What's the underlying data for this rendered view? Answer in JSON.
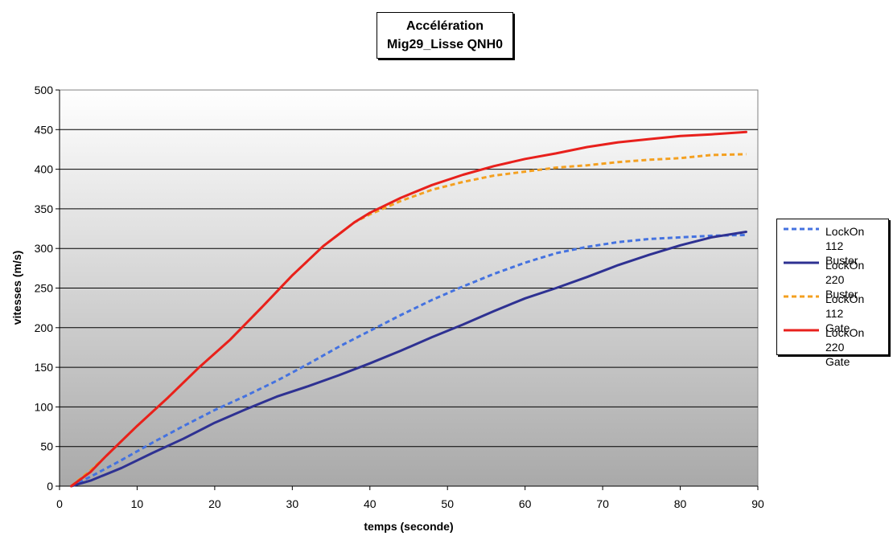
{
  "chart_data": {
    "type": "line",
    "title": "Accélération",
    "subtitle": "Mig29_Lisse QNH0",
    "xlabel": "temps (seconde)",
    "ylabel": "vitesses (m/s)",
    "xlim": [
      0,
      90
    ],
    "ylim": [
      0,
      500
    ],
    "xticks": [
      0,
      10,
      20,
      30,
      40,
      50,
      60,
      70,
      80,
      90
    ],
    "yticks": [
      0,
      50,
      100,
      150,
      200,
      250,
      300,
      350,
      400,
      450,
      500
    ],
    "grid": true,
    "legend_position": "right",
    "series": [
      {
        "name": "LockOn 112\nBuster",
        "color": "#4472e0",
        "dashed": true,
        "x": [
          1.5,
          4,
          8,
          12,
          16,
          20,
          24,
          28,
          32,
          36,
          40,
          44,
          48,
          52,
          56,
          60,
          64,
          68,
          72,
          76,
          80,
          84,
          88.5
        ],
        "y": [
          0,
          12,
          33,
          55,
          76,
          96,
          114,
          133,
          154,
          176,
          196,
          216,
          235,
          252,
          268,
          282,
          294,
          302,
          308,
          312,
          314,
          316,
          317
        ]
      },
      {
        "name": "LockOn 220\nBuster",
        "color": "#2e3192",
        "dashed": false,
        "x": [
          1.5,
          4,
          8,
          12,
          16,
          20,
          24,
          28,
          32,
          36,
          40,
          44,
          48,
          52,
          56,
          60,
          64,
          68,
          72,
          76,
          80,
          84,
          88.5
        ],
        "y": [
          0,
          7,
          23,
          42,
          60,
          80,
          97,
          113,
          126,
          140,
          155,
          171,
          188,
          204,
          221,
          237,
          250,
          264,
          279,
          292,
          304,
          314,
          321
        ]
      },
      {
        "name": "LockOn 112\nGate",
        "color": "#f4a020",
        "dashed": true,
        "x": [
          1.5,
          4,
          6,
          10,
          14,
          18,
          22,
          26,
          30,
          34,
          36,
          38,
          40,
          44,
          48,
          52,
          56,
          60,
          64,
          68,
          72,
          76,
          80,
          84,
          88.5
        ],
        "y": [
          0,
          20,
          38,
          76,
          112,
          150,
          185,
          225,
          266,
          303,
          318,
          333,
          343,
          360,
          374,
          384,
          392,
          397,
          402,
          405,
          409,
          412,
          414,
          418,
          419
        ]
      },
      {
        "name": "LockOn 220\nGate",
        "color": "#e8201c",
        "dashed": false,
        "x": [
          1.5,
          4,
          6,
          10,
          14,
          18,
          22,
          26,
          30,
          34,
          36,
          38,
          40,
          44,
          48,
          52,
          56,
          60,
          64,
          68,
          72,
          76,
          80,
          84,
          88.5
        ],
        "y": [
          0,
          18,
          38,
          76,
          112,
          150,
          185,
          225,
          266,
          303,
          318,
          333,
          345,
          364,
          380,
          393,
          404,
          413,
          420,
          428,
          434,
          438,
          442,
          444,
          447
        ]
      }
    ]
  }
}
